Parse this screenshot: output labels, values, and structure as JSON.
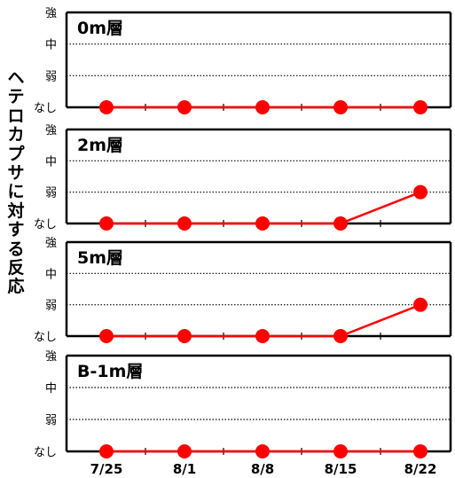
{
  "chart_data": {
    "type": "line",
    "ylabel": "ヘテロカプサに対する反応",
    "y_levels": [
      "なし",
      "弱",
      "中",
      "強"
    ],
    "categories": [
      "7/25",
      "8/1",
      "8/8",
      "8/15",
      "8/22"
    ],
    "ylim": [
      0,
      3
    ],
    "grid": "dotted horizontal at 弱 and 中",
    "series_color": "#ff0000",
    "panels": [
      {
        "title": "0m層",
        "values": [
          0,
          0,
          0,
          0,
          0
        ]
      },
      {
        "title": "2m層",
        "values": [
          0,
          0,
          0,
          0,
          1
        ]
      },
      {
        "title": "5m層",
        "values": [
          0,
          0,
          0,
          0,
          1
        ]
      },
      {
        "title": "B-1m層",
        "values": [
          0,
          0,
          0,
          0,
          0
        ]
      }
    ]
  }
}
